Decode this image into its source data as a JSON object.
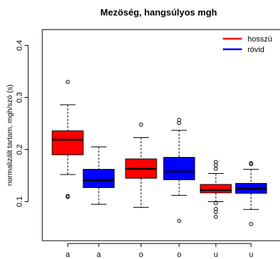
{
  "chart_data": {
    "type": "boxplot",
    "title": "Mezöség, hangsúlyos mgh",
    "xlabel": "",
    "ylabel": "normalizált tartam, mgh/szó (s)",
    "ylim": [
      0.05,
      0.44
    ],
    "yticks": [
      0.1,
      0.2,
      0.3,
      0.4
    ],
    "categories": [
      "a",
      "a",
      "o",
      "o",
      "u",
      "u"
    ],
    "legend": {
      "position": "top-right",
      "entries": [
        {
          "name": "hosszú",
          "color": "#ff0000"
        },
        {
          "name": "rövid",
          "color": "#0000ff"
        }
      ]
    },
    "boxes": [
      {
        "label": "a",
        "group": "hosszú",
        "color": "#ff0000",
        "whisker_low": 0.152,
        "q1": 0.19,
        "median": 0.219,
        "q3": 0.236,
        "whisker_high": 0.286,
        "outliers": [
          0.33,
          0.111,
          0.109
        ]
      },
      {
        "label": "a",
        "group": "rövid",
        "color": "#0000ff",
        "whisker_low": 0.095,
        "q1": 0.127,
        "median": 0.141,
        "q3": 0.162,
        "whisker_high": 0.205,
        "outliers": []
      },
      {
        "label": "o",
        "group": "hosszú",
        "color": "#ff0000",
        "whisker_low": 0.089,
        "q1": 0.145,
        "median": 0.163,
        "q3": 0.182,
        "whisker_high": 0.223,
        "outliers": [
          0.248
        ]
      },
      {
        "label": "o",
        "group": "rövid",
        "color": "#0000ff",
        "whisker_low": 0.112,
        "q1": 0.142,
        "median": 0.158,
        "q3": 0.185,
        "whisker_high": 0.237,
        "outliers": [
          0.257,
          0.251,
          0.063
        ]
      },
      {
        "label": "u",
        "group": "hosszú",
        "color": "#ff0000",
        "whisker_low": 0.1,
        "q1": 0.117,
        "median": 0.122,
        "q3": 0.133,
        "whisker_high": 0.154,
        "outliers": [
          0.176,
          0.17,
          0.163,
          0.097,
          0.086,
          0.08,
          0.071
        ]
      },
      {
        "label": "u",
        "group": "rövid",
        "color": "#0000ff",
        "whisker_low": 0.085,
        "q1": 0.116,
        "median": 0.125,
        "q3": 0.135,
        "whisker_high": 0.162,
        "outliers": [
          0.174,
          0.172,
          0.057
        ]
      }
    ]
  }
}
